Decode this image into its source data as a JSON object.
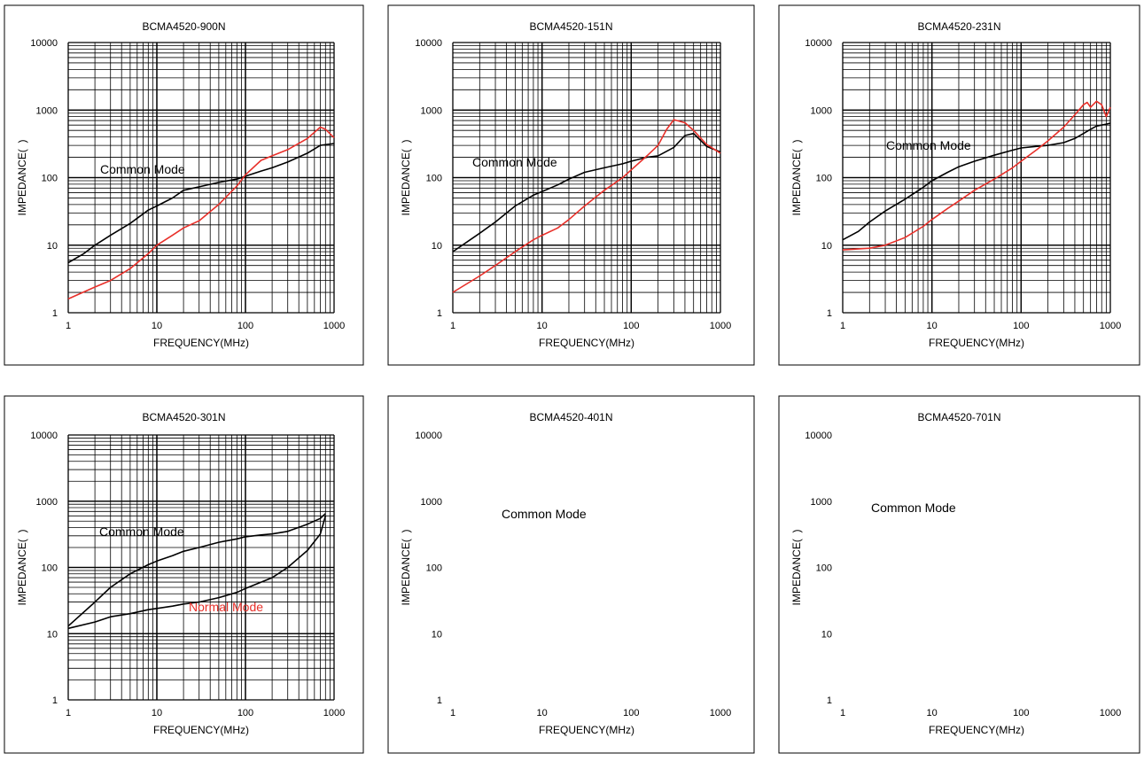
{
  "axis_labels": {
    "x": "FREQUENCY(MHz)",
    "y": "IMPEDANCE(  )"
  },
  "colors": {
    "common": "#000000",
    "normal": "#e8302a",
    "grid": "#000000"
  },
  "chart_data": [
    {
      "type": "line",
      "title": "BCMA4520-900N",
      "xlabel": "FREQUENCY(MHz)",
      "ylabel": "IMPEDANCE(  )",
      "x_scale": "log",
      "y_scale": "log",
      "xlim": [
        1,
        1000
      ],
      "ylim": [
        1,
        10000
      ],
      "x_ticks": [
        "1",
        "10",
        "100",
        "1000"
      ],
      "y_ticks": [
        "1",
        "10",
        "100",
        "1000",
        "10000"
      ],
      "grid": true,
      "annotations": [
        "Common Mode"
      ],
      "series": [
        {
          "kind": "common",
          "x": [
            1,
            1.5,
            2,
            3,
            5,
            8,
            10,
            15,
            20,
            30,
            50,
            80,
            100,
            150,
            200,
            300,
            500,
            700,
            1000
          ],
          "y": [
            5.5,
            7.5,
            10,
            14,
            21,
            33,
            38,
            50,
            65,
            73,
            85,
            95,
            105,
            125,
            140,
            170,
            230,
            300,
            320
          ]
        },
        {
          "kind": "normal",
          "x": [
            1,
            2,
            3,
            5,
            8,
            10,
            15,
            20,
            30,
            50,
            80,
            100,
            150,
            200,
            300,
            500,
            700,
            800,
            1000
          ],
          "y": [
            1.6,
            2.4,
            3.0,
            4.5,
            7.5,
            10,
            14,
            18,
            23,
            40,
            75,
            110,
            180,
            210,
            260,
            380,
            560,
            520,
            390
          ]
        }
      ]
    },
    {
      "type": "line",
      "title": "BCMA4520-151N",
      "xlabel": "FREQUENCY(MHz)",
      "ylabel": "IMPEDANCE(  )",
      "x_scale": "log",
      "y_scale": "log",
      "xlim": [
        1,
        1000
      ],
      "ylim": [
        1,
        10000
      ],
      "x_ticks": [
        "1",
        "10",
        "100",
        "1000"
      ],
      "y_ticks": [
        "1",
        "10",
        "100",
        "1000",
        "10000"
      ],
      "grid": true,
      "annotations": [
        "Common Mode"
      ],
      "series": [
        {
          "kind": "common",
          "x": [
            1,
            2,
            3,
            5,
            8,
            10,
            15,
            20,
            30,
            50,
            80,
            100,
            150,
            200,
            300,
            400,
            500,
            700,
            1000
          ],
          "y": [
            8,
            15,
            22,
            38,
            55,
            62,
            78,
            95,
            120,
            140,
            160,
            175,
            200,
            210,
            280,
            420,
            450,
            290,
            240
          ]
        },
        {
          "kind": "normal",
          "x": [
            1,
            2,
            3,
            5,
            8,
            10,
            15,
            20,
            30,
            50,
            80,
            100,
            150,
            200,
            250,
            300,
            400,
            500,
            700,
            1000
          ],
          "y": [
            2,
            3.5,
            5,
            8,
            12,
            14,
            18,
            24,
            38,
            65,
            100,
            130,
            210,
            300,
            520,
            720,
            650,
            500,
            310,
            230
          ]
        }
      ]
    },
    {
      "type": "line",
      "title": "BCMA4520-231N",
      "xlabel": "FREQUENCY(MHz)",
      "ylabel": "IMPEDANCE(  )",
      "x_scale": "log",
      "y_scale": "log",
      "xlim": [
        1,
        1000
      ],
      "ylim": [
        1,
        10000
      ],
      "x_ticks": [
        "1",
        "10",
        "100",
        "1000"
      ],
      "y_ticks": [
        "1",
        "10",
        "100",
        "1000",
        "10000"
      ],
      "grid": true,
      "annotations": [
        "Common Mode"
      ],
      "series": [
        {
          "kind": "common",
          "x": [
            1,
            1.5,
            2,
            3,
            5,
            8,
            10,
            15,
            20,
            30,
            50,
            80,
            100,
            150,
            200,
            300,
            400,
            500,
            600,
            700,
            800,
            900,
            1000
          ],
          "y": [
            12,
            16,
            22,
            32,
            48,
            72,
            90,
            120,
            145,
            175,
            215,
            255,
            275,
            290,
            300,
            330,
            380,
            450,
            520,
            580,
            600,
            620,
            640
          ]
        },
        {
          "kind": "normal",
          "x": [
            1,
            2,
            3,
            5,
            8,
            10,
            15,
            20,
            30,
            50,
            80,
            100,
            150,
            200,
            300,
            400,
            500,
            550,
            600,
            700,
            800,
            900,
            1000
          ],
          "y": [
            8.5,
            9,
            10,
            13,
            19,
            24,
            35,
            45,
            65,
            95,
            140,
            175,
            260,
            350,
            560,
            850,
            1200,
            1300,
            1100,
            1350,
            1200,
            800,
            1100
          ]
        }
      ]
    },
    {
      "type": "line",
      "title": "BCMA4520-301N",
      "xlabel": "FREQUENCY(MHz)",
      "ylabel": "IMPEDANCE(  )",
      "x_scale": "log",
      "y_scale": "log",
      "xlim": [
        1,
        1000
      ],
      "ylim": [
        1,
        10000
      ],
      "x_ticks": [
        "1",
        "10",
        "100",
        "1000"
      ],
      "y_ticks": [
        "1",
        "10",
        "100",
        "1000",
        "10000"
      ],
      "grid": true,
      "annotations": [
        "Common Mode",
        "Normal Mode"
      ],
      "series": [
        {
          "kind": "common",
          "x": [
            1,
            2,
            3,
            5,
            8,
            10,
            15,
            20,
            30,
            50,
            80,
            100,
            150,
            200,
            300,
            500,
            700,
            800
          ],
          "y": [
            13,
            30,
            50,
            80,
            110,
            125,
            150,
            175,
            200,
            240,
            270,
            290,
            310,
            320,
            350,
            450,
            550,
            650
          ]
        },
        {
          "kind": "common",
          "x": [
            1,
            2,
            3,
            5,
            8,
            10,
            15,
            20,
            30,
            50,
            80,
            100,
            200,
            300,
            500,
            700,
            800
          ],
          "y": [
            12,
            15,
            18,
            20,
            23,
            24,
            26,
            28,
            30,
            35,
            42,
            48,
            70,
            100,
            180,
            320,
            600
          ]
        }
      ]
    },
    {
      "type": "line",
      "title": "BCMA4520-401N",
      "xlabel": "FREQUENCY(MHz)",
      "ylabel": "IMPEDANCE(  )",
      "x_scale": "log",
      "y_scale": "log",
      "xlim": [
        1,
        1000
      ],
      "ylim": [
        1,
        10000
      ],
      "x_ticks": [
        "1",
        "10",
        "100",
        "1000"
      ],
      "y_ticks": [
        "1",
        "10",
        "100",
        "1000",
        "10000"
      ],
      "grid": false,
      "annotations": [
        "Common Mode"
      ],
      "series": []
    },
    {
      "type": "line",
      "title": "BCMA4520-701N",
      "xlabel": "FREQUENCY(MHz)",
      "ylabel": "IMPEDANCE(  )",
      "x_scale": "log",
      "y_scale": "log",
      "xlim": [
        1,
        1000
      ],
      "ylim": [
        1,
        10000
      ],
      "x_ticks": [
        "1",
        "10",
        "100",
        "1000"
      ],
      "y_ticks": [
        "1",
        "10",
        "100",
        "1000",
        "10000"
      ],
      "grid": false,
      "annotations": [
        "Common Mode"
      ],
      "series": []
    }
  ]
}
